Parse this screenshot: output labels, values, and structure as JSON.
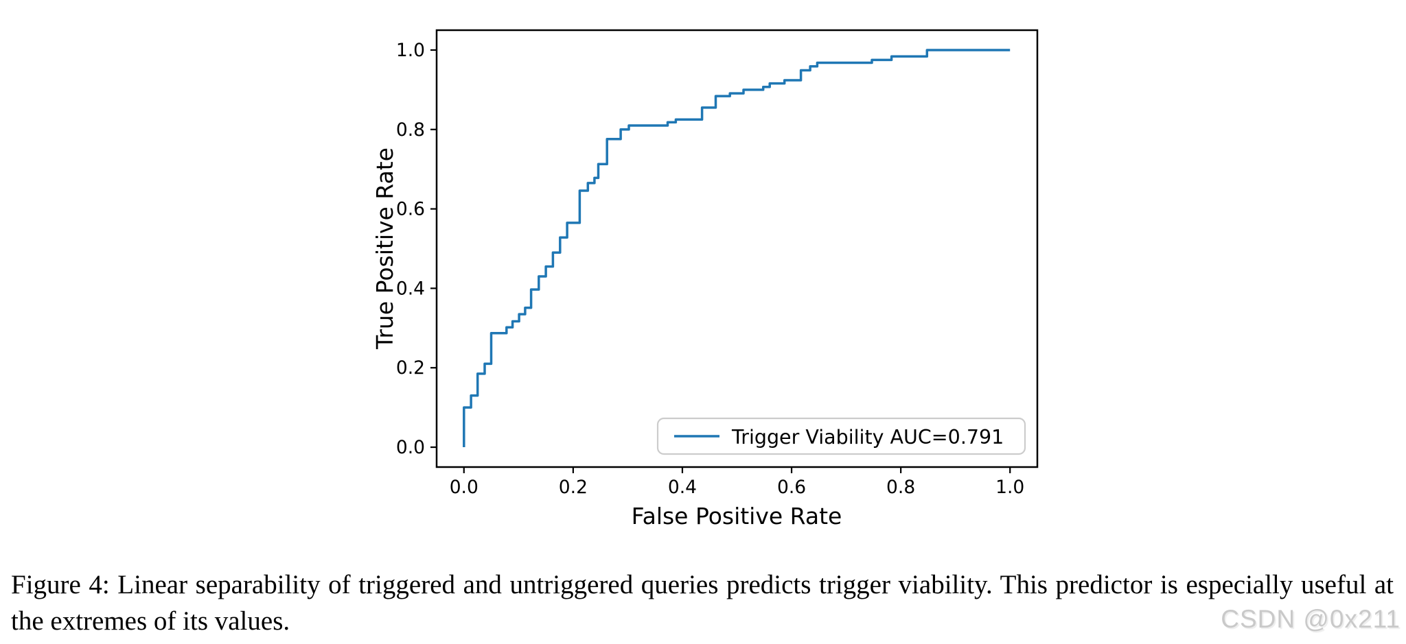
{
  "page": {
    "background": "#ffffff"
  },
  "chart_data": {
    "type": "line",
    "subtype": "roc-step-curve",
    "title": "",
    "xlabel": "False Positive Rate",
    "ylabel": "True Positive Rate",
    "xlim": [
      -0.05,
      1.05
    ],
    "ylim": [
      -0.05,
      1.05
    ],
    "x_ticks": [
      0.0,
      0.2,
      0.4,
      0.6,
      0.8,
      1.0
    ],
    "x_tick_labels": [
      "0.0",
      "0.2",
      "0.4",
      "0.6",
      "0.8",
      "1.0"
    ],
    "y_ticks": [
      0.0,
      0.2,
      0.4,
      0.6,
      0.8,
      1.0
    ],
    "y_tick_labels": [
      "0.0",
      "0.2",
      "0.4",
      "0.6",
      "0.8",
      "1.0"
    ],
    "grid": false,
    "legend": {
      "position": "lower right",
      "label": "Trigger Viability AUC=0.791"
    },
    "series": [
      {
        "name": "Trigger Viability",
        "auc": 0.791,
        "color": "#1f77b4",
        "points": [
          [
            0.0,
            0.0
          ],
          [
            0.0,
            0.1
          ],
          [
            0.013,
            0.1
          ],
          [
            0.013,
            0.13
          ],
          [
            0.025,
            0.13
          ],
          [
            0.025,
            0.185
          ],
          [
            0.038,
            0.185
          ],
          [
            0.038,
            0.21
          ],
          [
            0.05,
            0.21
          ],
          [
            0.05,
            0.287
          ],
          [
            0.078,
            0.287
          ],
          [
            0.078,
            0.302
          ],
          [
            0.089,
            0.302
          ],
          [
            0.089,
            0.317
          ],
          [
            0.101,
            0.317
          ],
          [
            0.101,
            0.335
          ],
          [
            0.112,
            0.335
          ],
          [
            0.112,
            0.351
          ],
          [
            0.123,
            0.351
          ],
          [
            0.123,
            0.397
          ],
          [
            0.137,
            0.397
          ],
          [
            0.137,
            0.43
          ],
          [
            0.15,
            0.43
          ],
          [
            0.15,
            0.455
          ],
          [
            0.163,
            0.455
          ],
          [
            0.163,
            0.49
          ],
          [
            0.176,
            0.49
          ],
          [
            0.176,
            0.528
          ],
          [
            0.189,
            0.528
          ],
          [
            0.189,
            0.565
          ],
          [
            0.212,
            0.565
          ],
          [
            0.212,
            0.646
          ],
          [
            0.227,
            0.646
          ],
          [
            0.227,
            0.665
          ],
          [
            0.239,
            0.665
          ],
          [
            0.239,
            0.678
          ],
          [
            0.246,
            0.678
          ],
          [
            0.246,
            0.713
          ],
          [
            0.262,
            0.713
          ],
          [
            0.262,
            0.776
          ],
          [
            0.287,
            0.776
          ],
          [
            0.287,
            0.8
          ],
          [
            0.302,
            0.8
          ],
          [
            0.302,
            0.81
          ],
          [
            0.373,
            0.81
          ],
          [
            0.373,
            0.818
          ],
          [
            0.388,
            0.818
          ],
          [
            0.388,
            0.825
          ],
          [
            0.436,
            0.825
          ],
          [
            0.436,
            0.855
          ],
          [
            0.461,
            0.855
          ],
          [
            0.461,
            0.884
          ],
          [
            0.487,
            0.884
          ],
          [
            0.487,
            0.891
          ],
          [
            0.512,
            0.891
          ],
          [
            0.512,
            0.9
          ],
          [
            0.548,
            0.9
          ],
          [
            0.548,
            0.907
          ],
          [
            0.56,
            0.907
          ],
          [
            0.56,
            0.916
          ],
          [
            0.587,
            0.916
          ],
          [
            0.587,
            0.924
          ],
          [
            0.617,
            0.924
          ],
          [
            0.617,
            0.949
          ],
          [
            0.634,
            0.949
          ],
          [
            0.634,
            0.959
          ],
          [
            0.647,
            0.959
          ],
          [
            0.647,
            0.968
          ],
          [
            0.747,
            0.968
          ],
          [
            0.747,
            0.975
          ],
          [
            0.783,
            0.975
          ],
          [
            0.783,
            0.984
          ],
          [
            0.848,
            0.984
          ],
          [
            0.848,
            1.0
          ],
          [
            1.0,
            1.0
          ]
        ]
      }
    ]
  },
  "caption": {
    "text": "Figure 4: Linear separability of triggered and untriggered queries predicts trigger viability. This predictor is especially useful at the extremes of its values."
  },
  "watermark": {
    "text": "CSDN @0x211",
    "color": "#c9c9c9"
  }
}
